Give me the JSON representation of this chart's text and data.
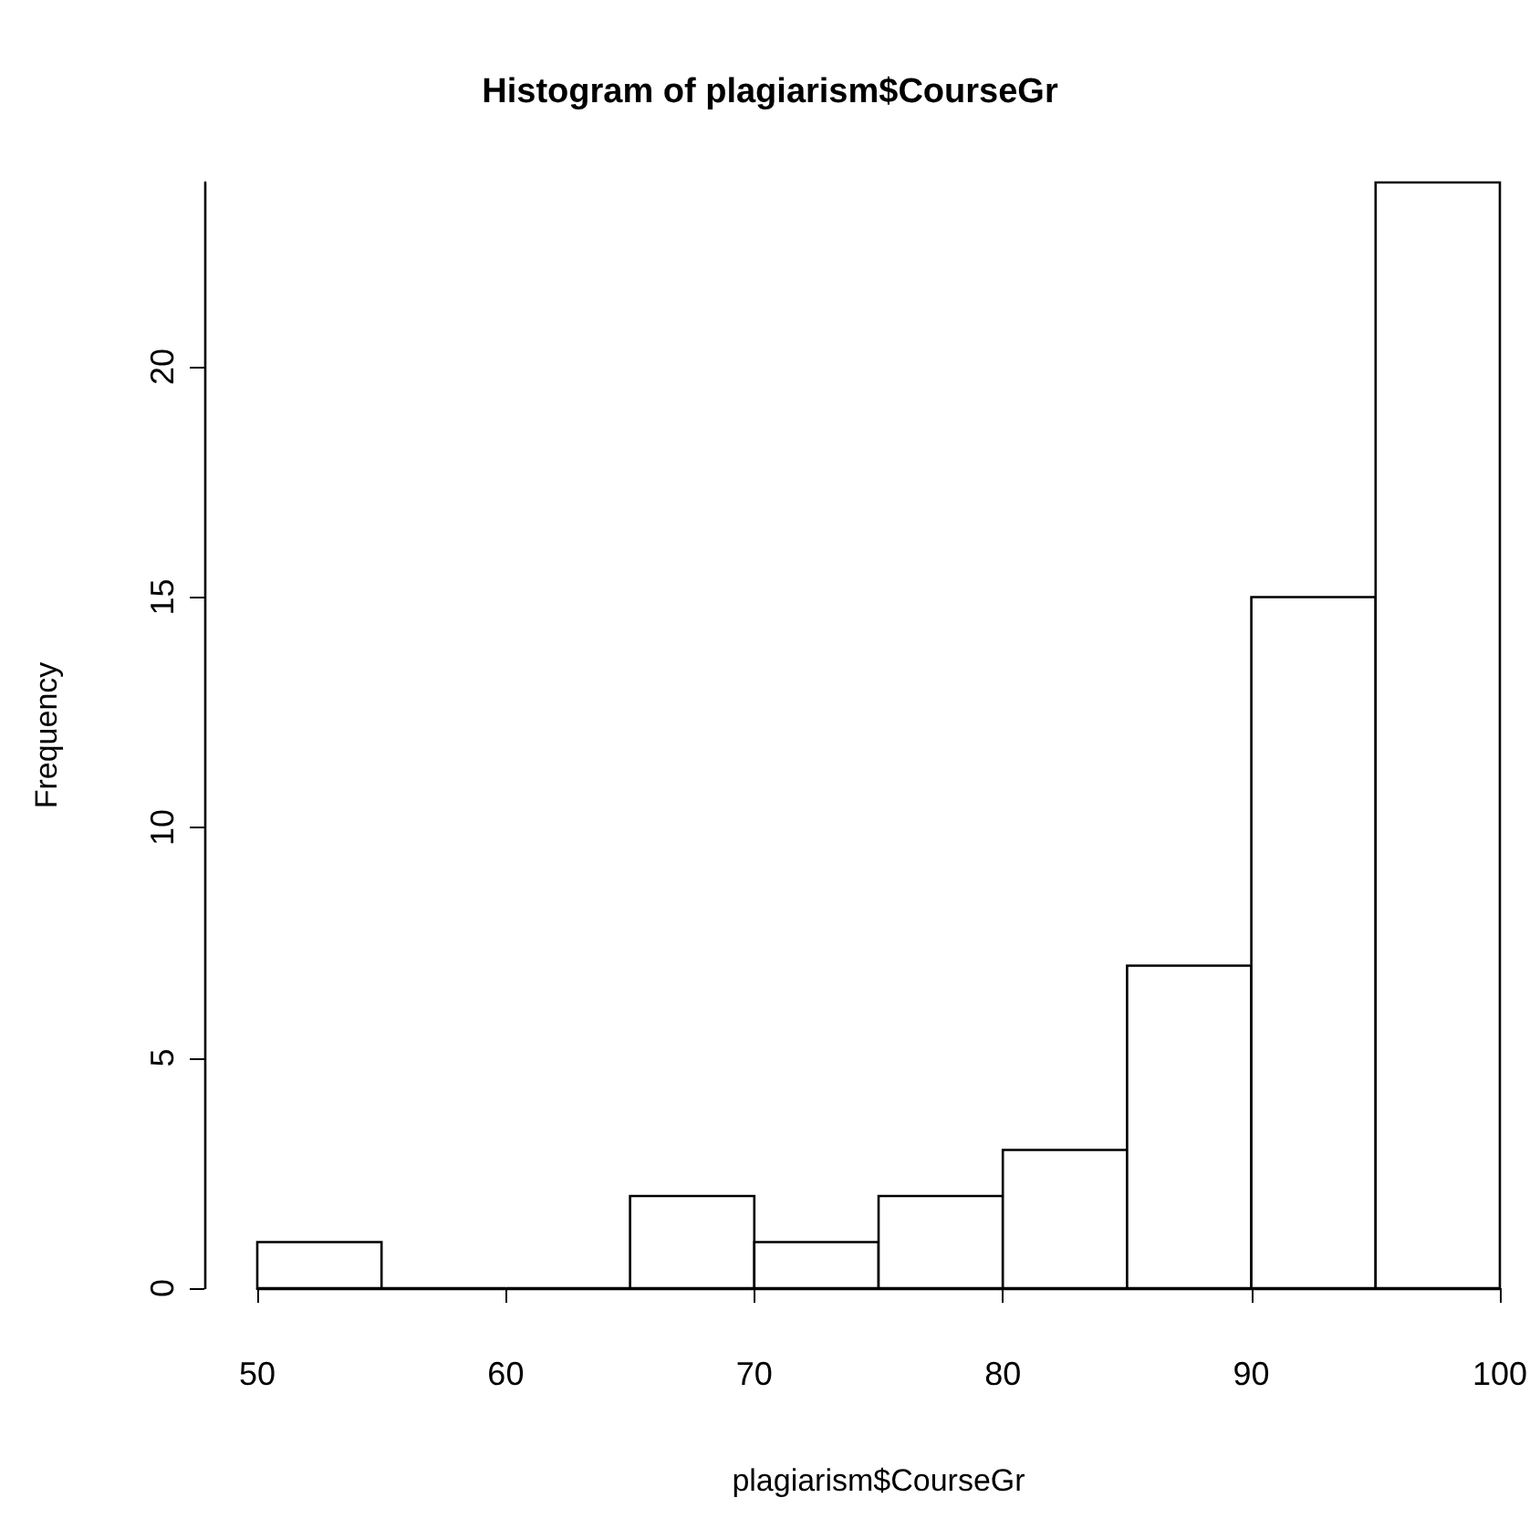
{
  "chart_data": {
    "type": "histogram",
    "title": "Histogram of plagiarism$CourseGr",
    "xlabel": "plagiarism$CourseGr",
    "ylabel": "Frequency",
    "bins": [
      50,
      55,
      60,
      65,
      70,
      75,
      80,
      85,
      90,
      95,
      100
    ],
    "values": [
      1,
      0,
      0,
      2,
      1,
      2,
      3,
      7,
      15,
      24
    ],
    "color": "#ffffff",
    "xlim": [
      50,
      100
    ],
    "xticks": [
      50,
      60,
      70,
      80,
      90,
      100
    ],
    "ylim": [
      0,
      24
    ],
    "yticks": [
      0,
      5,
      10,
      15,
      20
    ]
  }
}
